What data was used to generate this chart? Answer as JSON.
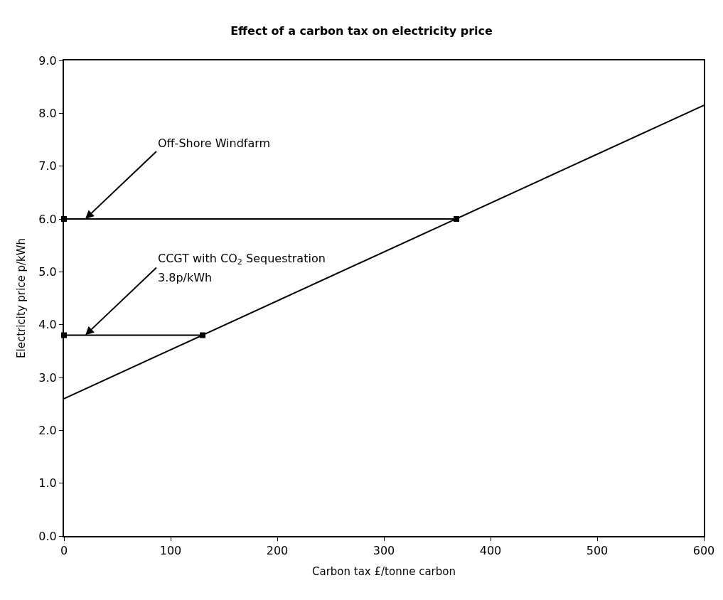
{
  "chart_data": {
    "type": "line",
    "title": "Effect of a carbon tax on electricity price",
    "xlabel": "Carbon tax £/tonne carbon",
    "ylabel": "Electricity price p/kWh",
    "series": [
      {
        "color": "#000000",
        "x": [
          0,
          600
        ],
        "values": [
          2.6,
          8.15
        ],
        "marker": "none"
      },
      {
        "color": "#000000",
        "x": [
          0,
          368
        ],
        "values": [
          6.0,
          6.0
        ],
        "marker": "square"
      },
      {
        "color": "#000000",
        "x": [
          0,
          130
        ],
        "values": [
          3.8,
          3.8
        ],
        "marker": "square"
      }
    ],
    "xlim": [
      0,
      600
    ],
    "xticks": [
      0,
      100,
      200,
      300,
      400,
      500,
      600
    ],
    "ylim": [
      0,
      9
    ],
    "yticks": [
      {
        "value": 0,
        "label": "0.0"
      },
      {
        "value": 1,
        "label": "1.0"
      },
      {
        "value": 2,
        "label": "2.0"
      },
      {
        "value": 3,
        "label": "3.0"
      },
      {
        "value": 4,
        "label": "4.0"
      },
      {
        "value": 5,
        "label": "5.0"
      },
      {
        "value": 6,
        "label": "6.0"
      },
      {
        "value": 7,
        "label": "7.0"
      },
      {
        "value": 8,
        "label": "8.0"
      },
      {
        "value": 9,
        "label": "9.0"
      }
    ],
    "annotations": [
      {
        "text": "Off-Shore Windfarm",
        "x": 20,
        "y": 6.0
      },
      {
        "text": "CCGT with CO$_{2}$ Sequestration",
        "x": 20,
        "y": 3.8
      },
      "3.8p/kWh"
    ],
    "line_style": "solid"
  }
}
